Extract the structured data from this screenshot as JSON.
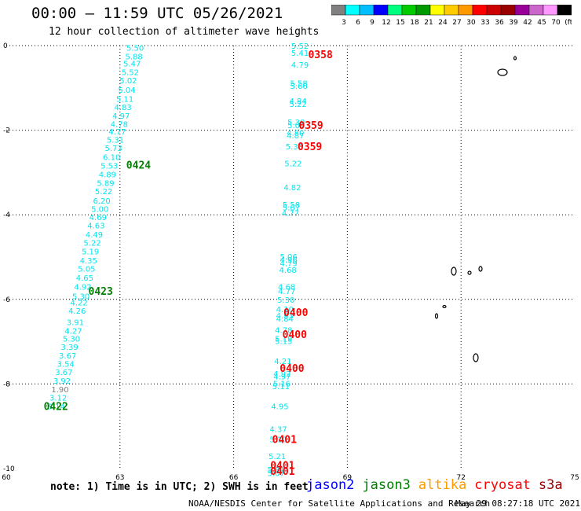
{
  "header": {
    "title": "00:00 – 11:59 UTC 05/26/2021",
    "subtitle": "12 hour collection of altimeter wave heights"
  },
  "colorbar": {
    "colors": [
      "#808080",
      "#00ffff",
      "#00bfff",
      "#0000ff",
      "#00ff7f",
      "#00cc00",
      "#009900",
      "#ffff00",
      "#ffcc00",
      "#ff9900",
      "#ff0000",
      "#cc0000",
      "#990000",
      "#990099",
      "#cc66cc",
      "#ff99ff",
      "#000000"
    ],
    "labels": [
      "3",
      "6",
      "9",
      "12",
      "15",
      "18",
      "21",
      "24",
      "27",
      "30",
      "33",
      "36",
      "39",
      "42",
      "45",
      "70",
      "(ft)"
    ]
  },
  "map": {
    "xlim": [
      60,
      75
    ],
    "ylim": [
      -10,
      0
    ],
    "x_ticks": [
      "60",
      "63",
      "66",
      "69",
      "72",
      "75"
    ],
    "y_ticks": [
      "0",
      "-2",
      "-4",
      "-6",
      "-8",
      "-10"
    ],
    "grid_lon": [
      63,
      66,
      69,
      72
    ],
    "grid_lat": [
      -2,
      -4,
      -6,
      -8
    ],
    "track_west": [
      {
        "lon": 63.4,
        "lat": -0.05,
        "v": "5.50"
      },
      {
        "lon": 63.37,
        "lat": -0.25,
        "v": "5.88"
      },
      {
        "lon": 63.32,
        "lat": -0.42,
        "v": "5.47"
      },
      {
        "lon": 63.27,
        "lat": -0.62,
        "v": "5.52"
      },
      {
        "lon": 63.22,
        "lat": -0.82,
        "v": "5.02"
      },
      {
        "lon": 63.18,
        "lat": -1.04,
        "v": "5.04"
      },
      {
        "lon": 63.13,
        "lat": -1.25,
        "v": "5.11"
      },
      {
        "lon": 63.08,
        "lat": -1.45,
        "v": "4.83"
      },
      {
        "lon": 63.03,
        "lat": -1.65,
        "v": "4.97"
      },
      {
        "lon": 62.98,
        "lat": -1.85,
        "v": "4.78"
      },
      {
        "lon": 62.93,
        "lat": -2.03,
        "v": "4.77"
      },
      {
        "lon": 62.88,
        "lat": -2.22,
        "v": "5.31"
      },
      {
        "lon": 62.83,
        "lat": -2.42,
        "v": "5.73"
      },
      {
        "lon": 62.78,
        "lat": -2.63,
        "v": "6.10"
      },
      {
        "lon": 62.72,
        "lat": -2.83,
        "v": "5.53"
      },
      {
        "lon": 62.67,
        "lat": -3.04,
        "v": "4.89"
      },
      {
        "lon": 62.62,
        "lat": -3.24,
        "v": "5.89"
      },
      {
        "lon": 62.57,
        "lat": -3.44,
        "v": "5.22"
      },
      {
        "lon": 62.52,
        "lat": -3.66,
        "v": "6.20"
      },
      {
        "lon": 62.47,
        "lat": -3.86,
        "v": "5.00"
      },
      {
        "lon": 62.42,
        "lat": -4.05,
        "v": "4.69"
      },
      {
        "lon": 62.37,
        "lat": -4.25,
        "v": "4.63"
      },
      {
        "lon": 62.32,
        "lat": -4.46,
        "v": "4.49"
      },
      {
        "lon": 62.27,
        "lat": -4.66,
        "v": "5.22"
      },
      {
        "lon": 62.22,
        "lat": -4.86,
        "v": "5.19"
      },
      {
        "lon": 62.17,
        "lat": -5.07,
        "v": "4.35"
      },
      {
        "lon": 62.12,
        "lat": -5.27,
        "v": "5.05"
      },
      {
        "lon": 62.07,
        "lat": -5.48,
        "v": "4.65"
      },
      {
        "lon": 62.02,
        "lat": -5.7,
        "v": "4.92"
      },
      {
        "lon": 61.97,
        "lat": -5.92,
        "v": "5.30"
      },
      {
        "lon": 61.92,
        "lat": -6.07,
        "v": "4.22"
      },
      {
        "lon": 61.87,
        "lat": -6.26,
        "v": "4.26"
      },
      {
        "lon": 61.82,
        "lat": -6.53,
        "v": "3.91"
      },
      {
        "lon": 61.77,
        "lat": -6.74,
        "v": "4.27"
      },
      {
        "lon": 61.72,
        "lat": -6.92,
        "v": "5.30"
      },
      {
        "lon": 61.67,
        "lat": -7.12,
        "v": "3.39"
      },
      {
        "lon": 61.62,
        "lat": -7.32,
        "v": "3.67"
      },
      {
        "lon": 61.57,
        "lat": -7.52,
        "v": "3.54"
      },
      {
        "lon": 61.52,
        "lat": -7.71,
        "v": "3.67"
      },
      {
        "lon": 61.47,
        "lat": -7.92,
        "v": "3.92"
      },
      {
        "lon": 61.42,
        "lat": -8.12,
        "v": "1.90"
      },
      {
        "lon": 61.37,
        "lat": -8.32,
        "v": "3.12"
      },
      {
        "lon": 61.32,
        "lat": -8.52,
        "v": "3.14"
      }
    ],
    "track_east": [
      {
        "lon": 67.75,
        "lat": 0.0,
        "v": "5.52"
      },
      {
        "lon": 67.75,
        "lat": -0.17,
        "v": "5.41"
      },
      {
        "lon": 67.75,
        "lat": -0.45,
        "v": "4.79"
      },
      {
        "lon": 67.72,
        "lat": -0.88,
        "v": "5.58"
      },
      {
        "lon": 67.72,
        "lat": -0.95,
        "v": "5.66"
      },
      {
        "lon": 67.7,
        "lat": -1.3,
        "v": "4.84"
      },
      {
        "lon": 67.7,
        "lat": -1.38,
        "v": "5.22"
      },
      {
        "lon": 67.65,
        "lat": -1.8,
        "v": "5.30"
      },
      {
        "lon": 67.65,
        "lat": -1.88,
        "v": "5.00"
      },
      {
        "lon": 67.63,
        "lat": -2.05,
        "v": "4.80"
      },
      {
        "lon": 67.63,
        "lat": -2.12,
        "v": "4.87"
      },
      {
        "lon": 67.6,
        "lat": -2.38,
        "v": "5.33"
      },
      {
        "lon": 67.57,
        "lat": -2.78,
        "v": "5.22"
      },
      {
        "lon": 67.55,
        "lat": -3.35,
        "v": "4.82"
      },
      {
        "lon": 67.52,
        "lat": -3.75,
        "v": "5.58"
      },
      {
        "lon": 67.52,
        "lat": -3.82,
        "v": "5.67"
      },
      {
        "lon": 67.5,
        "lat": -3.95,
        "v": "4.77"
      },
      {
        "lon": 67.45,
        "lat": -4.98,
        "v": "5.06"
      },
      {
        "lon": 67.45,
        "lat": -5.06,
        "v": "4.96"
      },
      {
        "lon": 67.45,
        "lat": -5.14,
        "v": "4.79"
      },
      {
        "lon": 67.43,
        "lat": -5.3,
        "v": "4.68"
      },
      {
        "lon": 67.4,
        "lat": -5.7,
        "v": "4.68"
      },
      {
        "lon": 67.4,
        "lat": -5.8,
        "v": "4.77"
      },
      {
        "lon": 67.38,
        "lat": -6.0,
        "v": "5.30"
      },
      {
        "lon": 67.35,
        "lat": -6.23,
        "v": "4.10"
      },
      {
        "lon": 67.35,
        "lat": -6.38,
        "v": "4.93"
      },
      {
        "lon": 67.35,
        "lat": -6.45,
        "v": "4.84"
      },
      {
        "lon": 67.32,
        "lat": -6.72,
        "v": "4.78"
      },
      {
        "lon": 67.32,
        "lat": -6.92,
        "v": "5.19"
      },
      {
        "lon": 67.32,
        "lat": -6.98,
        "v": "5.15"
      },
      {
        "lon": 67.3,
        "lat": -7.45,
        "v": "4.21"
      },
      {
        "lon": 67.28,
        "lat": -7.75,
        "v": "4.92"
      },
      {
        "lon": 67.28,
        "lat": -7.82,
        "v": "4.97"
      },
      {
        "lon": 67.27,
        "lat": -7.98,
        "v": "5.16"
      },
      {
        "lon": 67.25,
        "lat": -8.05,
        "v": "5.11"
      },
      {
        "lon": 67.22,
        "lat": -8.52,
        "v": "4.95"
      },
      {
        "lon": 67.18,
        "lat": -9.06,
        "v": "4.37"
      },
      {
        "lon": 67.18,
        "lat": -9.3,
        "v": "5.10"
      },
      {
        "lon": 67.15,
        "lat": -9.7,
        "v": "5.21"
      },
      {
        "lon": 67.12,
        "lat": -10.02,
        "v": "5.81"
      },
      {
        "lon": 67.12,
        "lat": -10.1,
        "v": "5.07"
      }
    ],
    "time_labels": [
      {
        "lon": 67.8,
        "lat": -0.2,
        "t": "0358",
        "c": "#ff0000"
      },
      {
        "lon": 67.55,
        "lat": -1.88,
        "t": "0359",
        "c": "#ff0000"
      },
      {
        "lon": 67.52,
        "lat": -2.38,
        "t": "0359",
        "c": "#ff0000"
      },
      {
        "lon": 63.0,
        "lat": -2.82,
        "t": "0424",
        "c": "#008000"
      },
      {
        "lon": 62.0,
        "lat": -5.8,
        "t": "0423",
        "c": "#008000"
      },
      {
        "lon": 67.15,
        "lat": -6.3,
        "t": "0400",
        "c": "#ff0000"
      },
      {
        "lon": 67.12,
        "lat": -6.82,
        "t": "0400",
        "c": "#ff0000"
      },
      {
        "lon": 67.05,
        "lat": -7.62,
        "t": "0400",
        "c": "#ff0000"
      },
      {
        "lon": 60.82,
        "lat": -8.52,
        "t": "0422",
        "c": "#008000"
      },
      {
        "lon": 66.85,
        "lat": -9.3,
        "t": "0401",
        "c": "#ff0000"
      },
      {
        "lon": 66.8,
        "lat": -9.92,
        "t": "0401",
        "c": "#ff0000"
      },
      {
        "lon": 66.8,
        "lat": -10.06,
        "t": "0401",
        "c": "#ff0000"
      }
    ]
  },
  "note": "note: 1) Time is in UTC; 2) SWH is in feet",
  "legend": [
    {
      "name": "jason2",
      "color": "#0000ff"
    },
    {
      "name": "jason3",
      "color": "#008000"
    },
    {
      "name": "altika",
      "color": "#ff9900"
    },
    {
      "name": "cryosat",
      "color": "#ff0000"
    },
    {
      "name": "s3a",
      "color": "#990000"
    }
  ],
  "footer": {
    "center": "NOAA/NESDIS Center for Satellite Applications and Research",
    "time": "May 29 08:27:18 UTC 2021"
  }
}
